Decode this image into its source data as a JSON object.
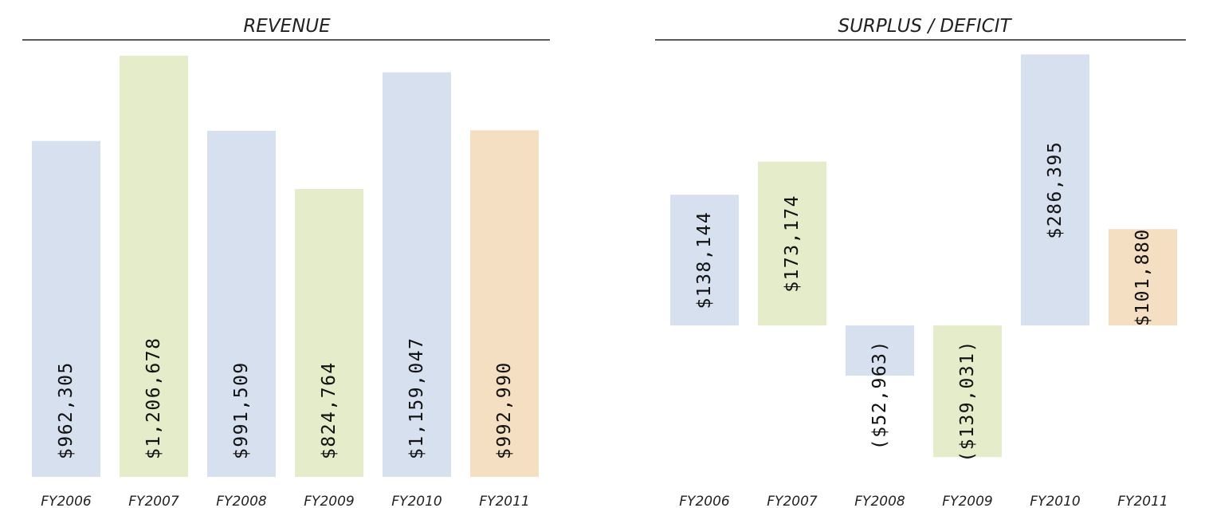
{
  "chart_data": [
    {
      "type": "bar",
      "title": "REVENUE",
      "categories": [
        "FY2006",
        "FY2007",
        "FY2008",
        "FY2009",
        "FY2010",
        "FY2011"
      ],
      "values": [
        962305,
        1206678,
        991509,
        824764,
        1159047,
        992990
      ],
      "value_labels": [
        "$962,305",
        "$1,206,678",
        "$991,509",
        "$824,764",
        "$1,159,047",
        "$992,990"
      ],
      "colors": [
        "#d6e0ef",
        "#e4ecc9",
        "#d6e0ef",
        "#e4ecc9",
        "#d6e0ef",
        "#f5dfc3"
      ],
      "ylim": [
        0,
        1220000
      ],
      "grid": false
    },
    {
      "type": "bar",
      "title": "SURPLUS / DEFICIT",
      "categories": [
        "FY2006",
        "FY2007",
        "FY2008",
        "FY2009",
        "FY2010",
        "FY2011"
      ],
      "values": [
        138144,
        173174,
        -52963,
        -139031,
        286395,
        101880
      ],
      "value_labels": [
        "$138,144",
        "$173,174",
        "($52,963)",
        "($139,031)",
        "$286,395",
        "$101,880"
      ],
      "colors": [
        "#d6e0ef",
        "#e4ecc9",
        "#d6e0ef",
        "#e4ecc9",
        "#d6e0ef",
        "#f5dfc3"
      ],
      "ylim": [
        -160000,
        290000
      ],
      "grid": false
    }
  ]
}
